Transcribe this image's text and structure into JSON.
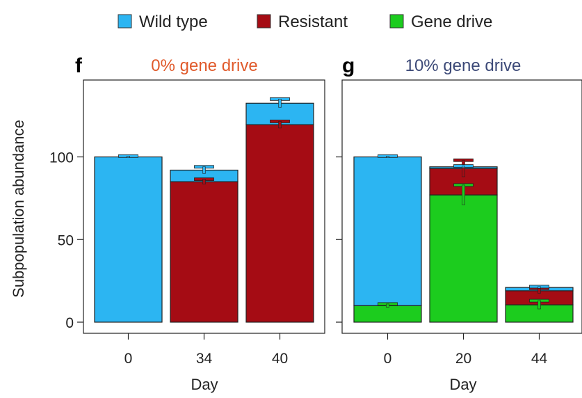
{
  "legend": {
    "items": [
      {
        "label": "Wild type",
        "color": "#2cb5f2"
      },
      {
        "label": "Resistant",
        "color": "#a50c14"
      },
      {
        "label": "Gene drive",
        "color": "#1ccc1e"
      }
    ]
  },
  "shared_axis": {
    "ylabel": "Subpopulation abundance",
    "xlabel": "Day",
    "yticks": [
      0,
      50,
      100
    ],
    "ylim": [
      -7,
      146
    ]
  },
  "chart_data": [
    {
      "type": "bar",
      "stacked": true,
      "panel_letter": "f",
      "title": "0% gene drive",
      "title_color": "#e05a2b",
      "xlabel": "Day",
      "ylabel": "Subpopulation abundance",
      "categories": [
        "0",
        "34",
        "40"
      ],
      "series": [
        {
          "name": "Gene drive",
          "color": "#1ccc1e",
          "values": [
            0,
            0,
            0
          ],
          "errors": [
            0,
            0,
            0
          ]
        },
        {
          "name": "Resistant",
          "color": "#a50c14",
          "values": [
            0,
            85,
            119.5
          ],
          "errors": [
            0,
            1.5,
            2
          ]
        },
        {
          "name": "Wild type",
          "color": "#2cb5f2",
          "values": [
            100,
            7,
            13
          ],
          "errors": [
            0.5,
            2,
            2.5
          ]
        }
      ]
    },
    {
      "type": "bar",
      "stacked": true,
      "panel_letter": "g",
      "title": "10% gene drive",
      "title_color": "#3d4a78",
      "xlabel": "Day",
      "ylabel": "Subpopulation abundance",
      "categories": [
        "0",
        "20",
        "44"
      ],
      "series": [
        {
          "name": "Gene drive",
          "color": "#1ccc1e",
          "values": [
            10,
            77,
            10.5
          ],
          "errors": [
            1,
            6,
            2.5
          ]
        },
        {
          "name": "Resistant",
          "color": "#a50c14",
          "values": [
            0,
            16,
            8.5
          ],
          "errors": [
            0,
            5,
            1.5
          ]
        },
        {
          "name": "Wild type",
          "color": "#2cb5f2",
          "values": [
            90,
            1,
            2
          ],
          "errors": [
            0.5,
            0.5,
            0.5
          ]
        }
      ]
    }
  ]
}
